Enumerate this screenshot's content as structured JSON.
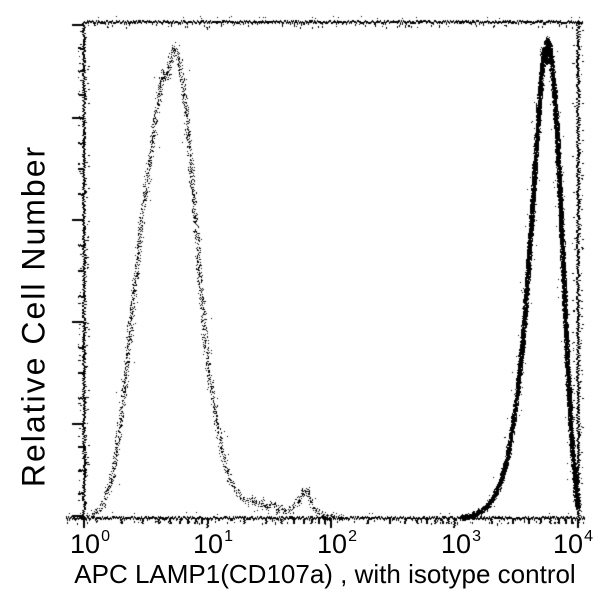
{
  "figure": {
    "background": "#ffffff",
    "ink_color": "#000000",
    "ylabel": "Relative Cell Number",
    "xlabel": "APC LAMP1(CD107a) , with isotype control",
    "x_ticks": [
      {
        "base": "10",
        "exp": "0"
      },
      {
        "base": "10",
        "exp": "1"
      },
      {
        "base": "10",
        "exp": "2"
      },
      {
        "base": "10",
        "exp": "3"
      },
      {
        "base": "10",
        "exp": "4"
      }
    ]
  },
  "chart_data": {
    "type": "line",
    "subtype": "flow-cytometry-histogram-overlay",
    "title": "",
    "xlabel": "APC LAMP1(CD107a) , with isotype control",
    "ylabel": "Relative Cell Number",
    "x_scale": "log10",
    "x_range": [
      1,
      10000
    ],
    "x_tick_values": [
      1,
      10,
      100,
      1000,
      10000
    ],
    "y_axis_tick_labels": "none (unlabeled relative scale)",
    "grid": "off",
    "legend": "none",
    "points_format": "[log10(x), relative_height_0_to_1]",
    "series": [
      {
        "name": "isotype control",
        "pattern": "stipple-light",
        "ink": "#000000",
        "peak_x_approx": 5.5,
        "peak_height": 0.95,
        "points": [
          [
            0.02,
            0.003
          ],
          [
            0.08,
            0.008
          ],
          [
            0.13,
            0.02
          ],
          [
            0.17,
            0.04
          ],
          [
            0.21,
            0.07
          ],
          [
            0.25,
            0.12
          ],
          [
            0.29,
            0.19
          ],
          [
            0.33,
            0.28
          ],
          [
            0.37,
            0.38
          ],
          [
            0.41,
            0.48
          ],
          [
            0.45,
            0.57
          ],
          [
            0.49,
            0.65
          ],
          [
            0.53,
            0.72
          ],
          [
            0.57,
            0.79
          ],
          [
            0.61,
            0.86
          ],
          [
            0.64,
            0.9
          ],
          [
            0.67,
            0.885
          ],
          [
            0.7,
            0.93
          ],
          [
            0.73,
            0.95
          ],
          [
            0.76,
            0.93
          ],
          [
            0.79,
            0.89
          ],
          [
            0.82,
            0.83
          ],
          [
            0.85,
            0.75
          ],
          [
            0.88,
            0.66
          ],
          [
            0.91,
            0.57
          ],
          [
            0.94,
            0.47
          ],
          [
            0.97,
            0.38
          ],
          [
            1.0,
            0.31
          ],
          [
            1.04,
            0.24
          ],
          [
            1.08,
            0.18
          ],
          [
            1.12,
            0.13
          ],
          [
            1.16,
            0.09
          ],
          [
            1.2,
            0.065
          ],
          [
            1.24,
            0.05
          ],
          [
            1.28,
            0.038
          ],
          [
            1.32,
            0.03
          ],
          [
            1.36,
            0.042
          ],
          [
            1.4,
            0.024
          ],
          [
            1.44,
            0.034
          ],
          [
            1.48,
            0.02
          ],
          [
            1.52,
            0.03
          ],
          [
            1.56,
            0.015
          ],
          [
            1.6,
            0.024
          ],
          [
            1.64,
            0.013
          ],
          [
            1.68,
            0.02
          ],
          [
            1.72,
            0.03
          ],
          [
            1.76,
            0.045
          ],
          [
            1.8,
            0.058
          ],
          [
            1.83,
            0.035
          ],
          [
            1.87,
            0.016
          ],
          [
            1.92,
            0.008
          ],
          [
            1.97,
            0.004
          ],
          [
            2.04,
            0.002
          ],
          [
            2.1,
            0.001
          ]
        ]
      },
      {
        "name": "APC LAMP1(CD107a)",
        "pattern": "stipple-dense",
        "ink": "#000000",
        "peak_x_approx": 5600,
        "peak_height": 0.965,
        "points": [
          [
            3.06,
            0.002
          ],
          [
            3.1,
            0.004
          ],
          [
            3.14,
            0.007
          ],
          [
            3.18,
            0.011
          ],
          [
            3.22,
            0.016
          ],
          [
            3.26,
            0.024
          ],
          [
            3.3,
            0.036
          ],
          [
            3.34,
            0.055
          ],
          [
            3.38,
            0.08
          ],
          [
            3.42,
            0.115
          ],
          [
            3.46,
            0.17
          ],
          [
            3.5,
            0.24
          ],
          [
            3.54,
            0.33
          ],
          [
            3.58,
            0.45
          ],
          [
            3.62,
            0.59
          ],
          [
            3.65,
            0.71
          ],
          [
            3.68,
            0.82
          ],
          [
            3.7,
            0.89
          ],
          [
            3.72,
            0.945
          ],
          [
            3.735,
            0.92
          ],
          [
            3.75,
            0.965
          ],
          [
            3.77,
            0.95
          ],
          [
            3.79,
            0.91
          ],
          [
            3.81,
            0.85
          ],
          [
            3.83,
            0.77
          ],
          [
            3.85,
            0.67
          ],
          [
            3.87,
            0.56
          ],
          [
            3.89,
            0.44
          ],
          [
            3.91,
            0.33
          ],
          [
            3.93,
            0.23
          ],
          [
            3.95,
            0.15
          ],
          [
            3.97,
            0.085
          ],
          [
            3.985,
            0.045
          ],
          [
            4.0,
            0.02
          ]
        ]
      }
    ]
  }
}
